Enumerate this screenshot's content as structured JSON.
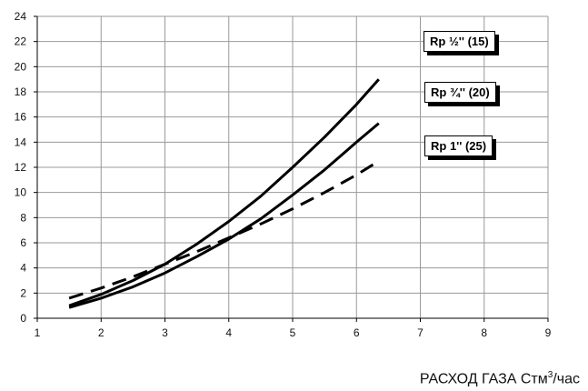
{
  "chart_data": {
    "type": "line",
    "xlabel_main": "РАСХОД ГАЗА Стм",
    "xlabel_sup": "3",
    "xlabel_tail": "/час",
    "ylabel": "",
    "xlim": [
      1,
      9
    ],
    "ylim": [
      0,
      24
    ],
    "xticks": [
      1,
      2,
      3,
      4,
      5,
      6,
      7,
      8,
      9
    ],
    "yticks": [
      0,
      2,
      4,
      6,
      8,
      10,
      12,
      14,
      16,
      18,
      20,
      22,
      24
    ],
    "grid": true,
    "legend_position": "right",
    "series": [
      {
        "name": "Rp ½'' (15)",
        "style": "solid",
        "x": [
          1.5,
          2.0,
          2.5,
          3.0,
          3.5,
          4.0,
          4.5,
          5.0,
          5.5,
          6.0,
          6.35
        ],
        "y": [
          1.0,
          1.9,
          3.0,
          4.3,
          5.9,
          7.7,
          9.7,
          12.0,
          14.4,
          17.0,
          19.0
        ]
      },
      {
        "name": "Rp ¾'' (20)",
        "style": "solid",
        "x": [
          1.5,
          2.0,
          2.5,
          3.0,
          3.5,
          4.0,
          4.5,
          5.0,
          5.5,
          6.0,
          6.35
        ],
        "y": [
          0.85,
          1.6,
          2.5,
          3.6,
          4.9,
          6.3,
          7.9,
          9.8,
          11.8,
          14.0,
          15.5
        ]
      },
      {
        "name": "Rp 1'' (25)",
        "style": "dashed",
        "x": [
          1.5,
          2.0,
          2.5,
          3.0,
          3.5,
          4.0,
          4.5,
          5.0,
          5.5,
          6.0,
          6.35
        ],
        "y": [
          1.6,
          2.4,
          3.3,
          4.3,
          5.3,
          6.4,
          7.5,
          8.7,
          10.0,
          11.4,
          12.5
        ]
      }
    ]
  }
}
